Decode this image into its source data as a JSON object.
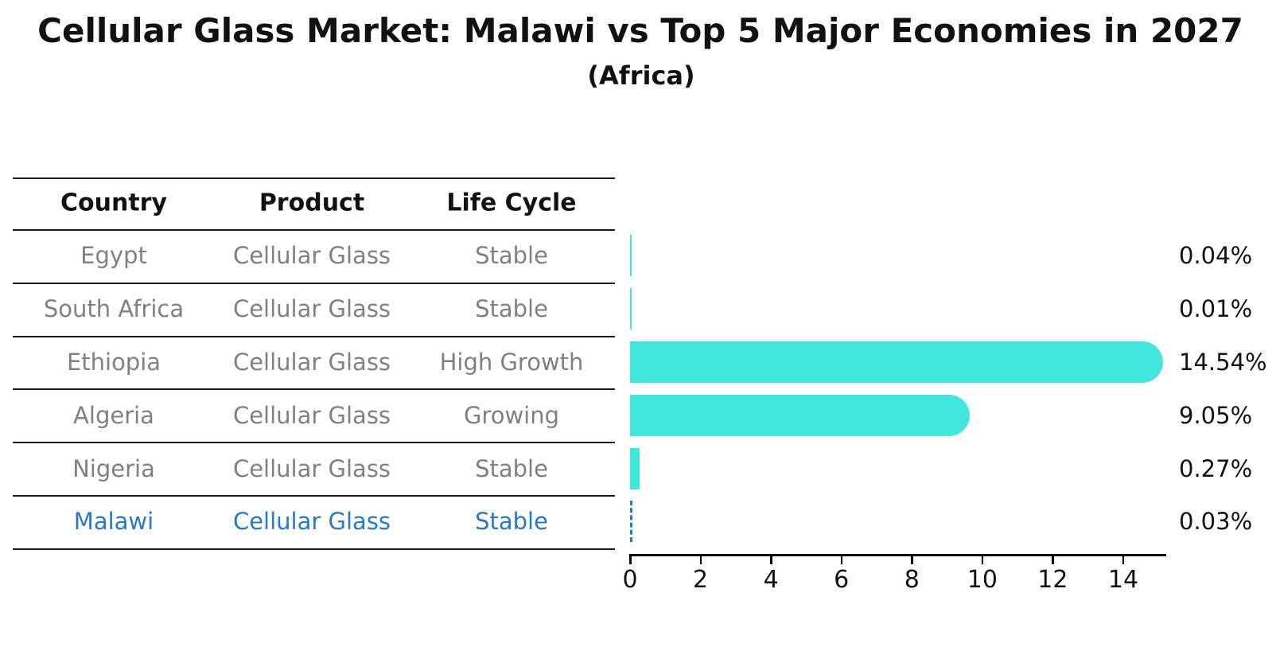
{
  "title": "Cellular Glass Market: Malawi vs Top 5 Major Economies in 2027",
  "subtitle": "(Africa)",
  "colors": {
    "bar": "#40E5DB",
    "highlight": "#2878C8",
    "row_text": "#808080",
    "header_text": "#111111",
    "axis": "#000000"
  },
  "table": {
    "headers": [
      "Country",
      "Product",
      "Life Cycle"
    ],
    "rows": [
      {
        "country": "Egypt",
        "product": "Cellular Glass",
        "life_cycle": "Stable",
        "highlight": false
      },
      {
        "country": "South Africa",
        "product": "Cellular Glass",
        "life_cycle": "Stable",
        "highlight": false
      },
      {
        "country": "Ethiopia",
        "product": "Cellular Glass",
        "life_cycle": "High Growth",
        "highlight": false
      },
      {
        "country": "Algeria",
        "product": "Cellular Glass",
        "life_cycle": "Growing",
        "highlight": false
      },
      {
        "country": "Nigeria",
        "product": "Cellular Glass",
        "life_cycle": "Stable",
        "highlight": false
      },
      {
        "country": "Malawi",
        "product": "Cellular Glass",
        "life_cycle": "Stable",
        "highlight": true
      }
    ]
  },
  "chart_data": {
    "type": "bar",
    "orientation": "horizontal",
    "title": "Cellular Glass Market: Malawi vs Top 5 Major Economies in 2027",
    "subtitle": "(Africa)",
    "categories": [
      "Egypt",
      "South Africa",
      "Ethiopia",
      "Algeria",
      "Nigeria",
      "Malawi"
    ],
    "values": [
      0.04,
      0.01,
      14.54,
      9.05,
      0.27,
      0.03
    ],
    "value_labels": [
      "0.04%",
      "0.01%",
      "14.54%",
      "9.05%",
      "0.27%",
      "0.03%"
    ],
    "xlim": [
      0,
      15.22
    ],
    "xticks": [
      0,
      2,
      4,
      6,
      8,
      10,
      12,
      14
    ],
    "grid": false,
    "legend": "none",
    "bar_color": "#40E5DB",
    "highlight_index": 5,
    "highlight_style": "dashed-outline",
    "highlight_color": "#2878C8"
  }
}
